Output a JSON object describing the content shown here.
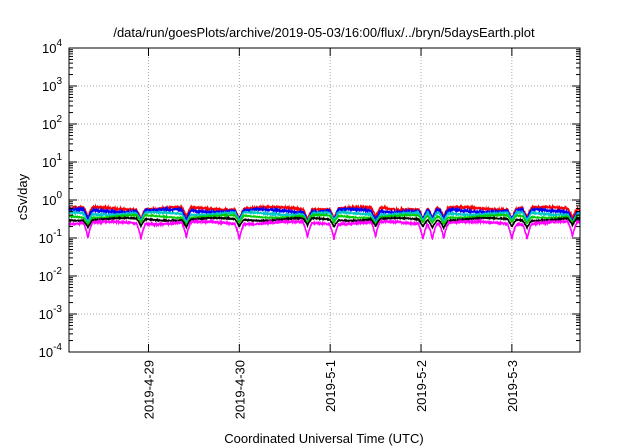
{
  "chart_data": {
    "type": "line",
    "title": "/data/run/goesPlots/archive/2019-05-03/16:00/flux/../bryn/5daysEarth.plot",
    "xlabel": "Coordinated Universal Time (UTC)",
    "ylabel": "cSv/day",
    "yscale": "log",
    "ylim": [
      0.0001,
      10000
    ],
    "xlim": [
      "2019-04-28 03:00",
      "2019-05-03 18:00"
    ],
    "grid": true,
    "legend": "none",
    "x_ticks": [
      "2019-4-29",
      "2019-4-30",
      "2019-5-1",
      "2019-5-2",
      "2019-5-3"
    ],
    "y_ticks": [
      {
        "base": "10",
        "exp": "-4"
      },
      {
        "base": "10",
        "exp": "-3"
      },
      {
        "base": "10",
        "exp": "-2"
      },
      {
        "base": "10",
        "exp": "-1"
      },
      {
        "base": "10",
        "exp": "0"
      },
      {
        "base": "10",
        "exp": "1"
      },
      {
        "base": "10",
        "exp": "2"
      },
      {
        "base": "10",
        "exp": "3"
      },
      {
        "base": "10",
        "exp": "4"
      }
    ],
    "series": [
      {
        "color": "#ff0000",
        "level": 0.6,
        "dip": 0.45,
        "noise": 0.06
      },
      {
        "color": "#0000ff",
        "level": 0.52,
        "dip": 0.45,
        "noise": 0.07
      },
      {
        "color": "#00c8c8",
        "level": 0.44,
        "dip": 0.4,
        "noise": 0.04
      },
      {
        "color": "#00cc00",
        "level": 0.37,
        "dip": 0.35,
        "noise": 0.03
      },
      {
        "color": "#000000",
        "level": 0.31,
        "dip": 0.35,
        "noise": 0.03
      },
      {
        "color": "#ff00ff",
        "level": 0.25,
        "dip": 0.6,
        "noise": 0.05
      }
    ],
    "dips": [
      "2019-04-28 08:00",
      "2019-04-28 22:00",
      "2019-04-29 10:00",
      "2019-04-30 00:00",
      "2019-04-30 18:00",
      "2019-05-01 01:00",
      "2019-05-01 12:00",
      "2019-05-02 00:30",
      "2019-05-02 03:00",
      "2019-05-02 06:00",
      "2019-05-03 00:00",
      "2019-05-03 04:00",
      "2019-05-03 16:00"
    ]
  }
}
